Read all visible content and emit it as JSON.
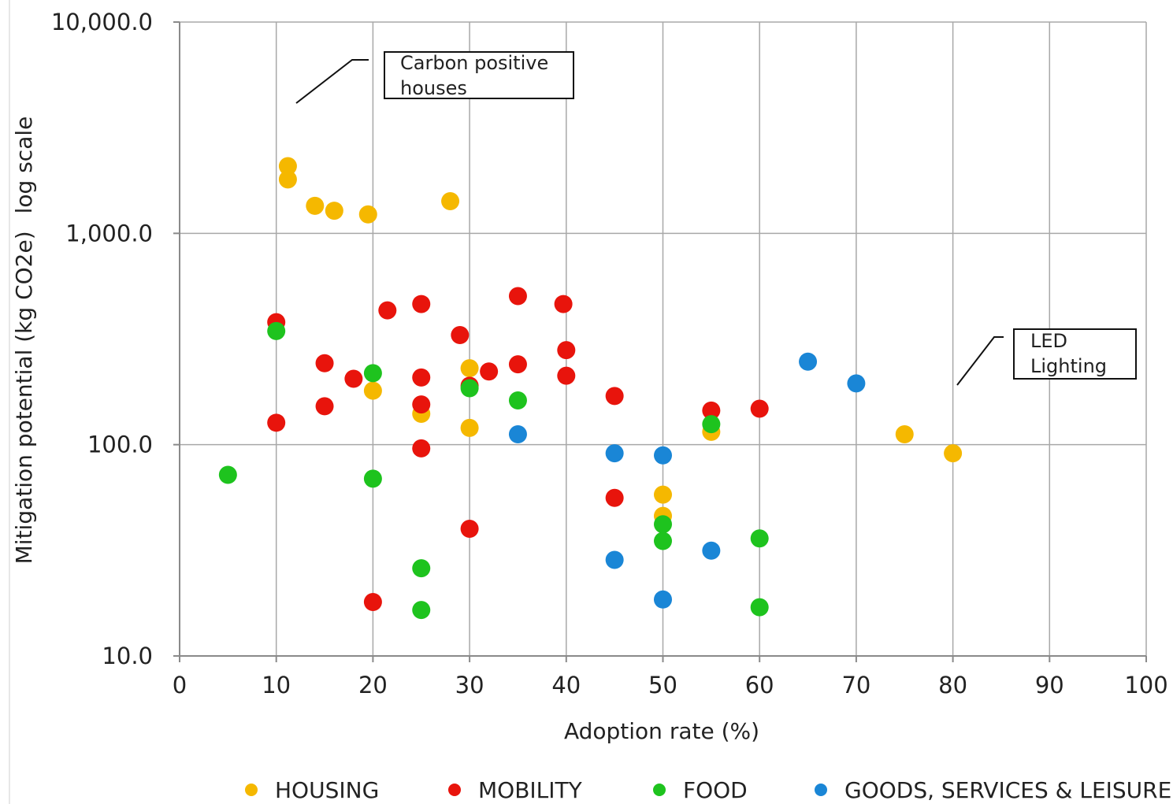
{
  "chart_data": {
    "type": "scatter",
    "title": "",
    "xlabel": "Adoption rate (%)",
    "ylabel": "Mitigation potential (kg CO2e)",
    "ylabel_note": "log scale",
    "xlim": [
      0,
      100
    ],
    "ylim": [
      10,
      10000
    ],
    "yscale": "log",
    "x_ticks": [
      "0",
      "10",
      "20",
      "30",
      "40",
      "50",
      "60",
      "70",
      "80",
      "90",
      "100"
    ],
    "y_ticks": [
      "10.0",
      "100.0",
      "1,000.0",
      "10,000.0"
    ],
    "grid": true,
    "legend_position": "bottom",
    "series": [
      {
        "name": "HOUSING",
        "color": "#f5b800",
        "points": [
          [
            11.2,
            2080
          ],
          [
            11.2,
            1800
          ],
          [
            14,
            1350
          ],
          [
            16,
            1280
          ],
          [
            19.5,
            1230
          ],
          [
            28,
            1420
          ],
          [
            30,
            230
          ],
          [
            20,
            180
          ],
          [
            25,
            140
          ],
          [
            30,
            120
          ],
          [
            50,
            58
          ],
          [
            50,
            46
          ],
          [
            55,
            115
          ],
          [
            75,
            112
          ],
          [
            80,
            91
          ]
        ]
      },
      {
        "name": "MOBILITY",
        "color": "#e8140c",
        "points": [
          [
            10,
            380
          ],
          [
            10,
            127
          ],
          [
            15,
            243
          ],
          [
            15,
            152
          ],
          [
            18,
            205
          ],
          [
            21.5,
            432
          ],
          [
            25,
            463
          ],
          [
            25,
            208
          ],
          [
            25,
            155
          ],
          [
            25,
            96
          ],
          [
            29,
            330
          ],
          [
            30,
            190
          ],
          [
            32,
            222
          ],
          [
            35,
            505
          ],
          [
            35,
            240
          ],
          [
            39.7,
            463
          ],
          [
            40,
            280
          ],
          [
            40,
            212
          ],
          [
            45,
            170
          ],
          [
            45,
            56
          ],
          [
            55,
            145
          ],
          [
            60,
            148
          ],
          [
            30,
            40
          ],
          [
            20,
            18
          ]
        ]
      },
      {
        "name": "FOOD",
        "color": "#1ec31e",
        "points": [
          [
            5,
            72
          ],
          [
            10,
            345
          ],
          [
            20,
            218
          ],
          [
            20,
            69
          ],
          [
            25,
            26
          ],
          [
            25,
            16.5
          ],
          [
            30,
            185
          ],
          [
            35,
            162
          ],
          [
            50,
            42
          ],
          [
            50,
            35
          ],
          [
            55,
            125
          ],
          [
            60,
            36
          ],
          [
            60,
            17
          ]
        ]
      },
      {
        "name": "GOODS, SERVICES & LEISURE",
        "color": "#1a86d6",
        "points": [
          [
            35,
            112
          ],
          [
            45,
            91
          ],
          [
            45,
            28.5
          ],
          [
            50,
            89
          ],
          [
            50,
            18.5
          ],
          [
            55,
            31.5
          ],
          [
            65,
            247
          ],
          [
            70,
            195
          ]
        ]
      }
    ],
    "annotations": [
      {
        "lines": [
          "Carbon positive",
          "houses"
        ],
        "points_to": [
          12,
          3000
        ]
      },
      {
        "lines": [
          "LED",
          "Lighting"
        ],
        "points_to": [
          80,
          130
        ]
      }
    ]
  }
}
